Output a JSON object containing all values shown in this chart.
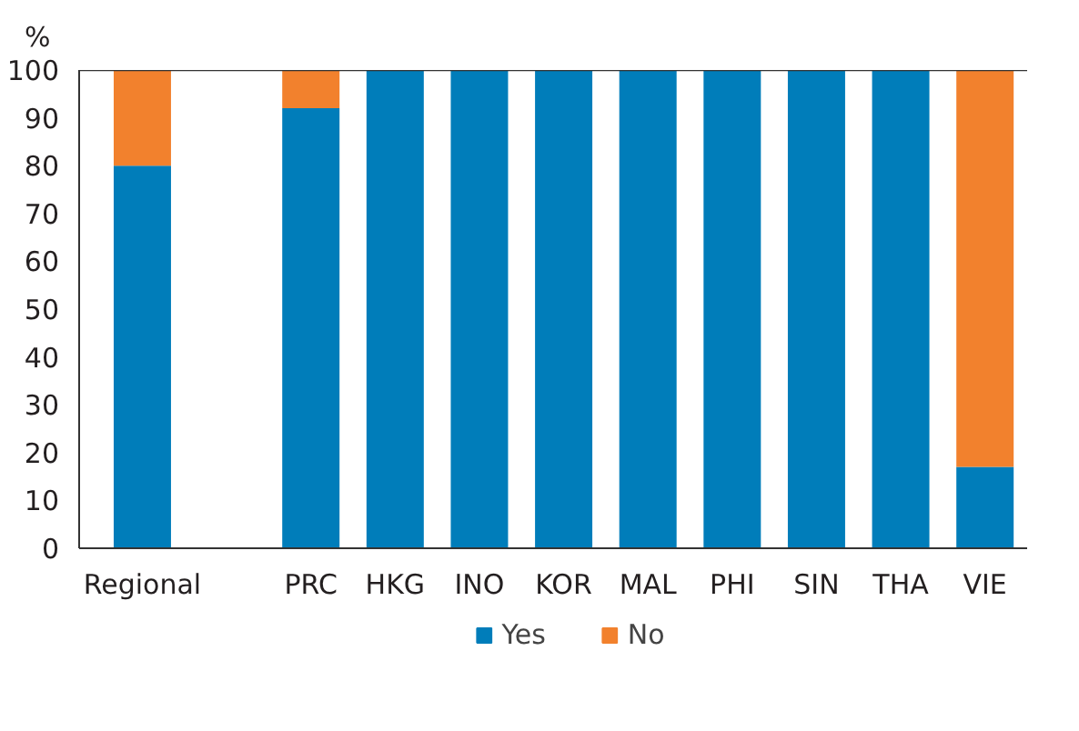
{
  "chart_data": {
    "type": "bar",
    "stacked": true,
    "ylabel": "%",
    "categories": [
      "Regional",
      null,
      "PRC",
      "HKG",
      "INO",
      "KOR",
      "MAL",
      "PHI",
      "SIN",
      "THA",
      "VIE"
    ],
    "series": [
      {
        "name": "Yes",
        "color": "#007dba",
        "values": [
          80,
          null,
          92,
          100,
          100,
          100,
          100,
          100,
          100,
          100,
          17
        ]
      },
      {
        "name": "No",
        "color": "#f2812d",
        "values": [
          20,
          null,
          8,
          0,
          0,
          0,
          0,
          0,
          0,
          0,
          83
        ]
      }
    ],
    "ylim": [
      0,
      100
    ],
    "yticks": [
      0,
      10,
      20,
      30,
      40,
      50,
      60,
      70,
      80,
      90,
      100
    ],
    "grid": false,
    "legend": "bottom"
  }
}
